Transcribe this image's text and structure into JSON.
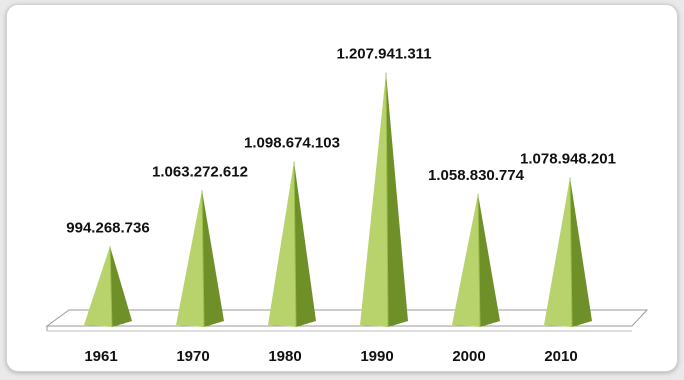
{
  "chart_data": {
    "type": "bar",
    "bar_shape": "pyramid-3d",
    "categories": [
      "1961",
      "1970",
      "1980",
      "1990",
      "2000",
      "2010"
    ],
    "values": [
      994268736,
      1063272612,
      1098674103,
      1207941311,
      1058830774,
      1078948201
    ],
    "value_labels": [
      "994.268.736",
      "1.063.272.612",
      "1.098.674.103",
      "1.207.941.311",
      "1.058.830.774",
      "1.078.948.201"
    ],
    "title": "",
    "xlabel": "",
    "ylabel": "",
    "grid": false,
    "legend": "none",
    "colors": {
      "bar_light": "#b8d36c",
      "bar_mid": "#9dbd4d",
      "bar_dark": "#6f8f28",
      "floor": "#ffffff",
      "floor_stroke": "#9a9a9a"
    }
  }
}
